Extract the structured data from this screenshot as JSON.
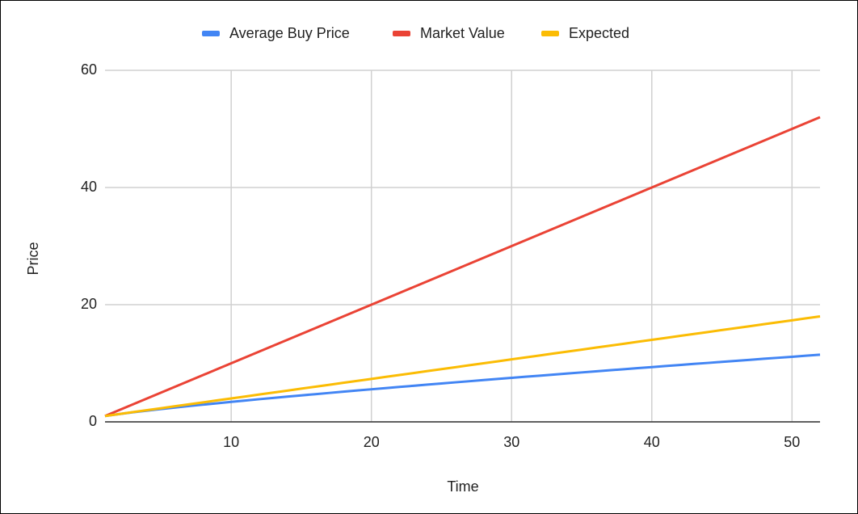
{
  "chart_data": {
    "type": "line",
    "x": [
      1,
      2,
      3,
      4,
      5,
      6,
      7,
      8,
      9,
      10,
      11,
      12,
      13,
      14,
      15,
      16,
      17,
      18,
      19,
      20,
      21,
      22,
      23,
      24,
      25,
      26,
      27,
      28,
      29,
      30,
      31,
      32,
      33,
      34,
      35,
      36,
      37,
      38,
      39,
      40,
      41,
      42,
      43,
      44,
      45,
      46,
      47,
      48,
      49,
      50,
      51,
      52
    ],
    "series": [
      {
        "name": "Average Buy Price",
        "color": "#4285f4",
        "values": [
          1,
          1.33,
          1.64,
          1.92,
          2.19,
          2.45,
          2.7,
          2.94,
          3.18,
          3.41,
          3.64,
          3.87,
          4.09,
          4.31,
          4.52,
          4.73,
          4.94,
          5.15,
          5.36,
          5.56,
          5.76,
          5.96,
          6.16,
          6.36,
          6.55,
          6.75,
          6.94,
          7.13,
          7.32,
          7.51,
          7.7,
          7.88,
          8.07,
          8.26,
          8.44,
          8.62,
          8.81,
          8.99,
          9.17,
          9.35,
          9.53,
          9.71,
          9.89,
          10.06,
          10.24,
          10.42,
          10.59,
          10.77,
          10.94,
          11.11,
          11.29,
          11.46
        ]
      },
      {
        "name": "Market Value",
        "color": "#ea4335",
        "values": [
          1,
          2,
          3,
          4,
          5,
          6,
          7,
          8,
          9,
          10,
          11,
          12,
          13,
          14,
          15,
          16,
          17,
          18,
          19,
          20,
          21,
          22,
          23,
          24,
          25,
          26,
          27,
          28,
          29,
          30,
          31,
          32,
          33,
          34,
          35,
          36,
          37,
          38,
          39,
          40,
          41,
          42,
          43,
          44,
          45,
          46,
          47,
          48,
          49,
          50,
          51,
          52
        ]
      },
      {
        "name": "Expected",
        "color": "#fbbc04",
        "values": [
          1,
          1.33,
          1.67,
          2,
          2.33,
          2.67,
          3,
          3.33,
          3.67,
          4,
          4.33,
          4.67,
          5,
          5.33,
          5.67,
          6,
          6.33,
          6.67,
          7,
          7.33,
          7.67,
          8,
          8.33,
          8.67,
          9,
          9.33,
          9.67,
          10,
          10.33,
          10.67,
          11,
          11.33,
          11.67,
          12,
          12.33,
          12.67,
          13,
          13.33,
          13.67,
          14,
          14.33,
          14.67,
          15,
          15.33,
          15.67,
          16,
          16.33,
          16.67,
          17,
          17.33,
          17.67,
          18
        ]
      }
    ],
    "x_label": "Time",
    "y_label": "Price",
    "xlim": [
      1,
      52
    ],
    "xticks": [
      10,
      20,
      30,
      40,
      50
    ],
    "ylim": [
      0,
      60
    ],
    "yticks": [
      0,
      20,
      40,
      60
    ],
    "grid": true,
    "legend": "top"
  }
}
